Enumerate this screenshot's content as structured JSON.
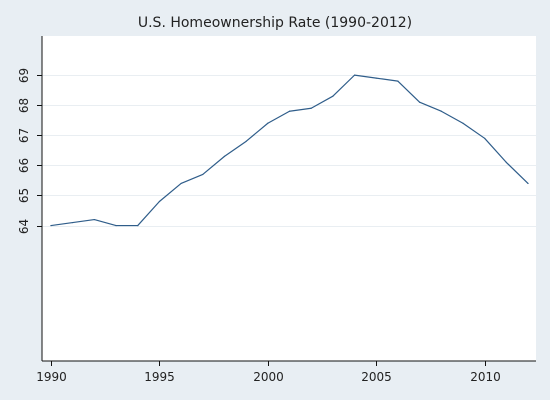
{
  "chart_data": {
    "type": "line",
    "title": "U.S. Homeownership Rate (1990-2012)",
    "xlabel": "",
    "ylabel": "",
    "x": [
      1990,
      1991,
      1992,
      1993,
      1994,
      1995,
      1996,
      1997,
      1998,
      1999,
      2000,
      2001,
      2002,
      2003,
      2004,
      2005,
      2006,
      2007,
      2008,
      2009,
      2010,
      2011,
      2012
    ],
    "series": [
      {
        "values": [
          64.0,
          64.1,
          64.2,
          64.0,
          64.0,
          64.8,
          65.4,
          65.7,
          66.3,
          66.8,
          67.4,
          67.8,
          67.9,
          68.3,
          69.0,
          68.9,
          68.8,
          68.1,
          67.8,
          67.4,
          66.9,
          66.1,
          65.4
        ]
      }
    ],
    "xlim": [
      1990,
      2012
    ],
    "ylim": [
      59.5,
      70.3
    ],
    "x_ticks": [
      1990,
      1995,
      2000,
      2005,
      2010
    ],
    "x_tick_labels": [
      "1990",
      "1995",
      "2000",
      "2005",
      "2010"
    ],
    "y_ticks": [
      64,
      65,
      66,
      67,
      68,
      69
    ],
    "y_tick_labels": [
      "64",
      "65",
      "66",
      "67",
      "68",
      "69"
    ],
    "grid": true,
    "legend": "none",
    "colors": {
      "page_background": "#e8eef3",
      "plot_background": "#ffffff",
      "line": "#2f5d8a",
      "grid": "#e9eef2",
      "axis": "#111111"
    }
  }
}
